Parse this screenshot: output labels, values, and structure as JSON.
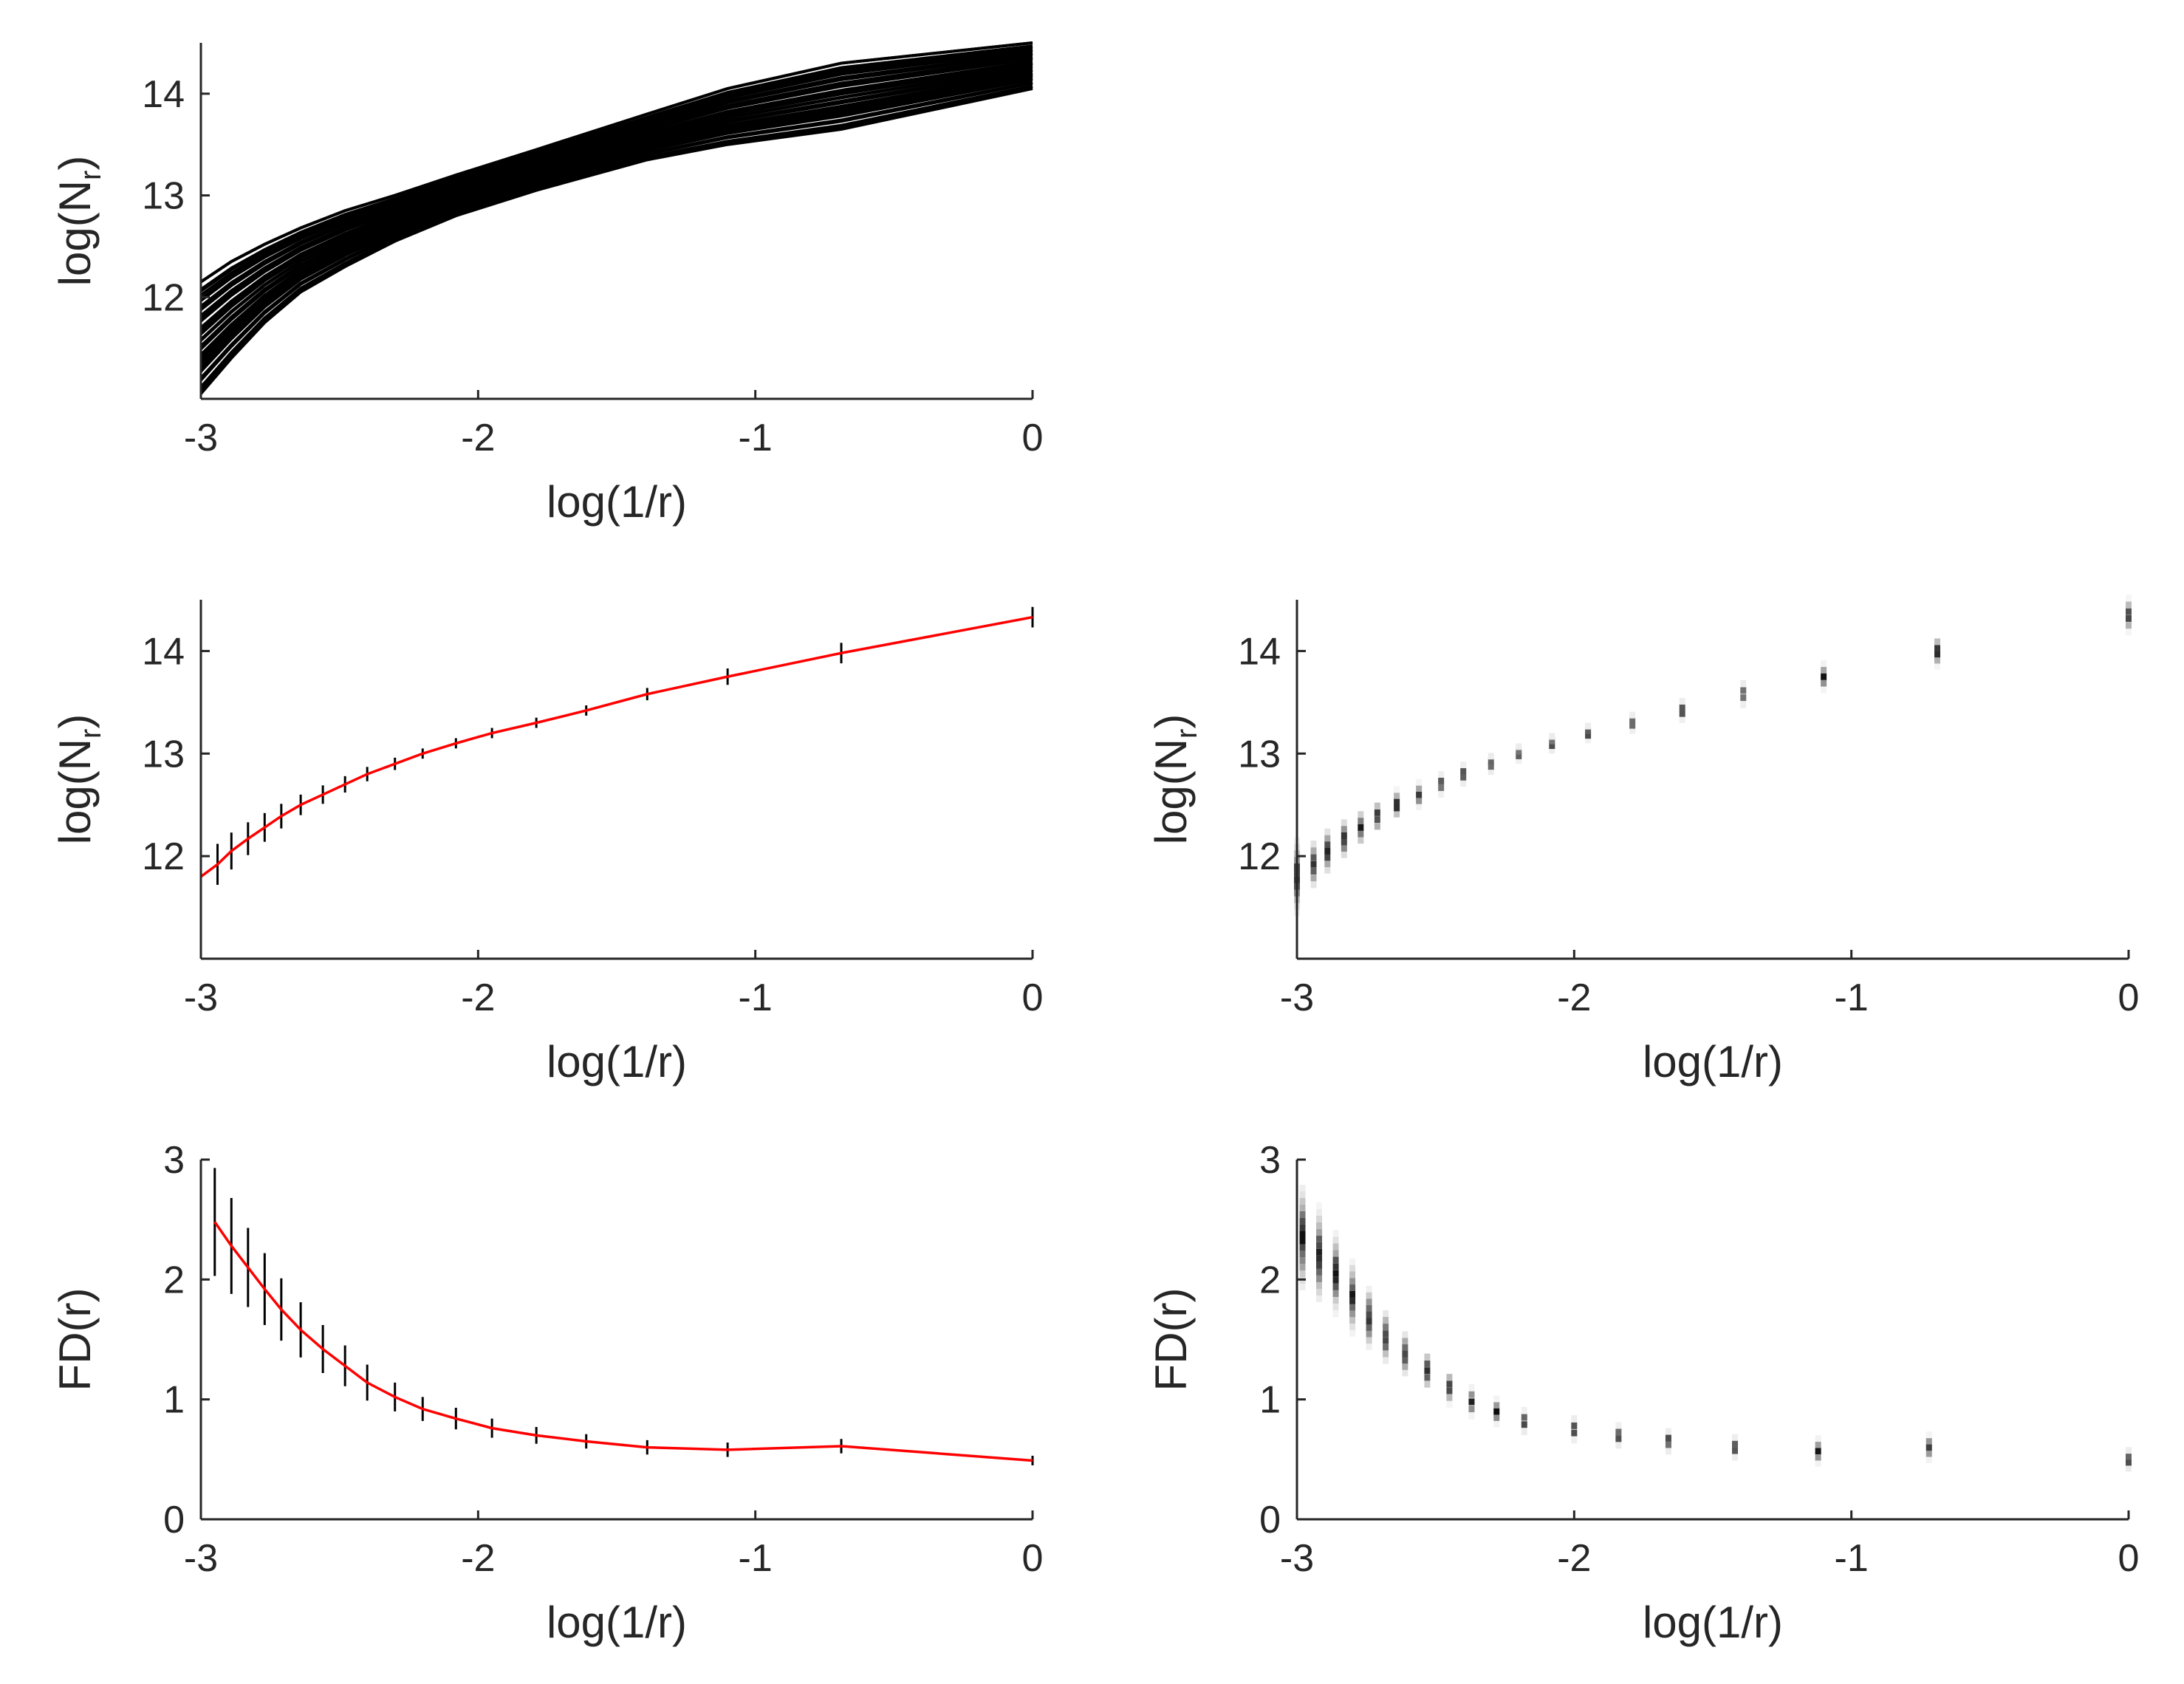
{
  "chart_data": [
    {
      "id": "ensemble",
      "type": "line",
      "title": "",
      "xlabel": "log(1/r)",
      "ylabel": {
        "main": "log(N",
        "sub": "r",
        "end": ")"
      },
      "xlim": [
        -3,
        0
      ],
      "ylim": [
        11,
        14.5
      ],
      "xticks": [
        -3,
        -2,
        -1,
        0
      ],
      "xtick_labels": [
        "-3",
        "-2",
        "-1",
        "0"
      ],
      "yticks": [
        12,
        13,
        14
      ],
      "ytick_labels": [
        "12",
        "13",
        "14"
      ],
      "x": [
        -3.0,
        -2.89,
        -2.77,
        -2.64,
        -2.48,
        -2.3,
        -2.08,
        -1.79,
        -1.39,
        -1.1,
        -0.69,
        0.0
      ],
      "series_low": [
        11.05,
        11.4,
        11.75,
        12.05,
        12.3,
        12.55,
        12.8,
        13.05,
        13.35,
        13.5,
        13.65,
        14.05
      ],
      "series_high": [
        12.15,
        12.35,
        12.52,
        12.68,
        12.85,
        13.0,
        13.2,
        13.45,
        13.8,
        14.05,
        14.3,
        14.5
      ],
      "series_count": 40,
      "color": "#000000"
    },
    {
      "id": "mean-errorbar",
      "type": "line",
      "title": "",
      "xlabel": "log(1/r)",
      "ylabel": {
        "main": "log(N",
        "sub": "r",
        "end": ")"
      },
      "xlim": [
        -3,
        0
      ],
      "ylim": [
        11,
        14.5
      ],
      "xticks": [
        -3,
        -2,
        -1,
        0
      ],
      "xtick_labels": [
        "-3",
        "-2",
        "-1",
        "0"
      ],
      "yticks": [
        12,
        13,
        14
      ],
      "ytick_labels": [
        "12",
        "13",
        "14"
      ],
      "x": [
        -3.0,
        -2.94,
        -2.89,
        -2.83,
        -2.77,
        -2.71,
        -2.64,
        -2.56,
        -2.48,
        -2.4,
        -2.3,
        -2.2,
        -2.08,
        -1.95,
        -1.79,
        -1.61,
        -1.39,
        -1.1,
        -0.69,
        0.0
      ],
      "y": [
        11.8,
        11.92,
        12.05,
        12.17,
        12.28,
        12.39,
        12.5,
        12.6,
        12.7,
        12.8,
        12.9,
        13.0,
        13.1,
        13.2,
        13.3,
        13.42,
        13.58,
        13.75,
        13.98,
        14.33
      ],
      "err": [
        0.2,
        0.2,
        0.18,
        0.16,
        0.14,
        0.12,
        0.1,
        0.09,
        0.08,
        0.07,
        0.06,
        0.05,
        0.05,
        0.05,
        0.05,
        0.05,
        0.06,
        0.08,
        0.1,
        0.1
      ],
      "line_color": "#ff0000",
      "errorbar_color": "#000000"
    },
    {
      "id": "density-logN",
      "type": "heatmap",
      "title": "",
      "xlabel": "log(1/r)",
      "ylabel": {
        "main": "log(N",
        "sub": "r",
        "end": ")"
      },
      "xlim": [
        -3,
        0
      ],
      "ylim": [
        11,
        14.5
      ],
      "xticks": [
        -3,
        -2,
        -1,
        0
      ],
      "xtick_labels": [
        "-3",
        "-2",
        "-1",
        "0"
      ],
      "yticks": [
        12,
        13,
        14
      ],
      "ytick_labels": [
        "12",
        "13",
        "14"
      ],
      "x": [
        -3.0,
        -2.94,
        -2.89,
        -2.83,
        -2.77,
        -2.71,
        -2.64,
        -2.56,
        -2.48,
        -2.4,
        -2.3,
        -2.2,
        -2.08,
        -1.95,
        -1.79,
        -1.61,
        -1.39,
        -1.1,
        -0.69,
        0.0
      ],
      "center": [
        11.8,
        11.92,
        12.05,
        12.17,
        12.28,
        12.39,
        12.5,
        12.6,
        12.7,
        12.8,
        12.9,
        13.0,
        13.1,
        13.2,
        13.3,
        13.42,
        13.58,
        13.75,
        14.0,
        14.35
      ],
      "spread": [
        0.45,
        0.3,
        0.28,
        0.25,
        0.22,
        0.2,
        0.18,
        0.15,
        0.13,
        0.12,
        0.1,
        0.09,
        0.09,
        0.09,
        0.1,
        0.12,
        0.14,
        0.16,
        0.18,
        0.2
      ],
      "colormap": "gray-inverted"
    },
    {
      "id": "fd-errorbar",
      "type": "line",
      "title": "",
      "xlabel": "log(1/r)",
      "ylabel": {
        "main": "FD(r)",
        "sub": "",
        "end": ""
      },
      "xlim": [
        -3,
        0
      ],
      "ylim": [
        0,
        3
      ],
      "xticks": [
        -3,
        -2,
        -1,
        0
      ],
      "xtick_labels": [
        "-3",
        "-2",
        "-1",
        "0"
      ],
      "yticks": [
        0,
        1,
        2,
        3
      ],
      "ytick_labels": [
        "0",
        "1",
        "2",
        "3"
      ],
      "x": [
        -2.95,
        -2.89,
        -2.83,
        -2.77,
        -2.71,
        -2.64,
        -2.56,
        -2.48,
        -2.4,
        -2.3,
        -2.2,
        -2.08,
        -1.95,
        -1.79,
        -1.61,
        -1.39,
        -1.1,
        -0.69,
        0.0
      ],
      "y": [
        2.48,
        2.28,
        2.1,
        1.92,
        1.75,
        1.58,
        1.42,
        1.28,
        1.14,
        1.02,
        0.92,
        0.84,
        0.76,
        0.7,
        0.65,
        0.6,
        0.58,
        0.61,
        0.49
      ],
      "err": [
        0.45,
        0.4,
        0.33,
        0.3,
        0.26,
        0.23,
        0.2,
        0.17,
        0.15,
        0.12,
        0.1,
        0.09,
        0.08,
        0.07,
        0.06,
        0.06,
        0.06,
        0.06,
        0.04
      ],
      "line_color": "#ff0000",
      "errorbar_color": "#000000"
    },
    {
      "id": "density-fd",
      "type": "heatmap",
      "title": "",
      "xlabel": "log(1/r)",
      "ylabel": {
        "main": "FD(r)",
        "sub": "",
        "end": ""
      },
      "xlim": [
        -3,
        0
      ],
      "ylim": [
        0,
        3
      ],
      "xticks": [
        -3,
        -2,
        -1,
        0
      ],
      "xtick_labels": [
        "-3",
        "-2",
        "-1",
        "0"
      ],
      "yticks": [
        0,
        1,
        2,
        3
      ],
      "ytick_labels": [
        "0",
        "1",
        "2",
        "3"
      ],
      "x": [
        -2.98,
        -2.92,
        -2.86,
        -2.8,
        -2.74,
        -2.68,
        -2.61,
        -2.53,
        -2.45,
        -2.37,
        -2.28,
        -2.18,
        -2.0,
        -1.84,
        -1.66,
        -1.42,
        -1.12,
        -0.72,
        0.0
      ],
      "center": [
        2.35,
        2.2,
        2.05,
        1.85,
        1.68,
        1.52,
        1.38,
        1.24,
        1.1,
        0.98,
        0.9,
        0.82,
        0.75,
        0.7,
        0.65,
        0.6,
        0.57,
        0.6,
        0.5
      ],
      "spread": [
        0.55,
        0.5,
        0.42,
        0.38,
        0.32,
        0.28,
        0.24,
        0.2,
        0.17,
        0.15,
        0.13,
        0.12,
        0.12,
        0.11,
        0.11,
        0.11,
        0.13,
        0.13,
        0.1
      ],
      "colormap": "gray-inverted"
    }
  ]
}
